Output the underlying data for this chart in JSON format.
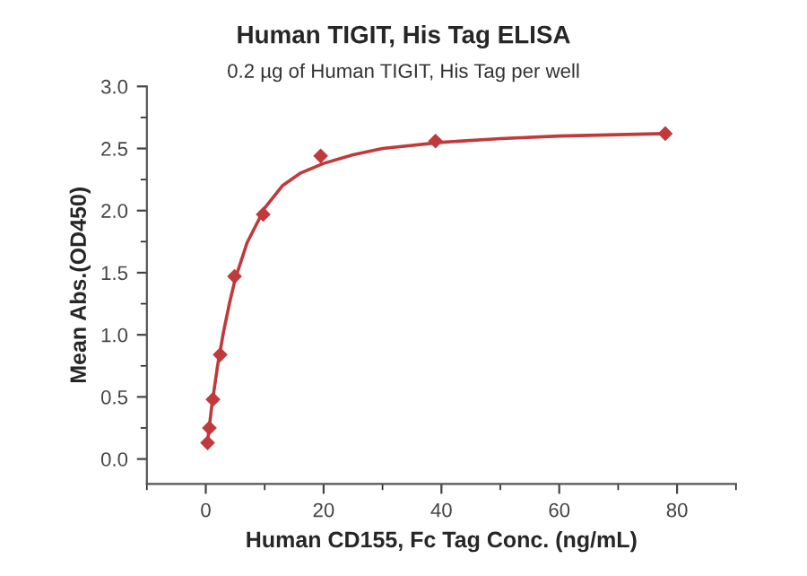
{
  "chart_data": {
    "type": "scatter",
    "title": "Human TIGIT, His Tag ELISA",
    "subtitle": "0.2 µg of Human TIGIT, His Tag per well",
    "xlabel": "Human CD155, Fc Tag Conc. (ng/mL)",
    "ylabel": "Mean Abs.(OD450)",
    "xlim": [
      -10,
      90
    ],
    "xticks": [
      0,
      20,
      40,
      60,
      80
    ],
    "ylim": [
      -0.2,
      3.0
    ],
    "yticks": [
      {
        "value": 0,
        "label": "0.0"
      },
      0.5,
      {
        "value": 1,
        "label": "1.0"
      },
      1.5,
      {
        "value": 2,
        "label": "2.0"
      },
      2.5,
      {
        "value": 3,
        "label": "3.0"
      }
    ],
    "grid": false,
    "series": [
      {
        "marker": "diamond",
        "color": "#c0393b",
        "x": [
          0.305,
          0.61,
          1.22,
          2.44,
          4.88,
          9.75,
          19.5,
          39,
          78
        ],
        "values": [
          0.13,
          0.25,
          0.48,
          0.84,
          1.47,
          1.97,
          2.44,
          2.56,
          2.62
        ]
      },
      {
        "type": "line",
        "marker": "none",
        "line_style": "solid",
        "color": "#c0393b",
        "x": [
          0.3,
          1,
          2,
          3,
          4,
          5,
          7,
          10,
          13,
          16,
          20,
          25,
          30,
          40,
          50,
          60,
          78
        ],
        "values": [
          0.14,
          0.42,
          0.75,
          1.02,
          1.25,
          1.45,
          1.74,
          2.02,
          2.2,
          2.3,
          2.38,
          2.45,
          2.5,
          2.55,
          2.58,
          2.6,
          2.62
        ]
      }
    ]
  }
}
